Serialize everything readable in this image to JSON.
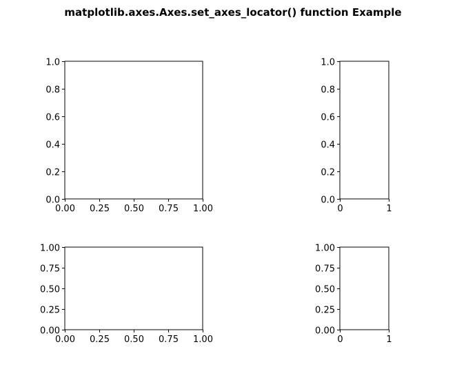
{
  "figure": {
    "title": "matplotlib.axes.Axes.set_axes_locator() function Example"
  },
  "chart_data": [
    {
      "type": "scatter",
      "name": "top-left",
      "xlim": [
        0,
        1
      ],
      "ylim": [
        0,
        1
      ],
      "x_ticks": [
        0.0,
        0.25,
        0.5,
        0.75,
        1.0
      ],
      "x_tick_labels": [
        "0.00",
        "0.25",
        "0.50",
        "0.75",
        "1.00"
      ],
      "y_ticks": [
        0.0,
        0.2,
        0.4,
        0.6,
        0.8,
        1.0
      ],
      "y_tick_labels": [
        "0.0",
        "0.2",
        "0.4",
        "0.6",
        "0.8",
        "1.0"
      ],
      "series": [],
      "grid": false
    },
    {
      "type": "scatter",
      "name": "top-right",
      "xlim": [
        0,
        1
      ],
      "ylim": [
        0,
        1
      ],
      "x_ticks": [
        0,
        1
      ],
      "x_tick_labels": [
        "0",
        "1"
      ],
      "y_ticks": [
        0.0,
        0.2,
        0.4,
        0.6,
        0.8,
        1.0
      ],
      "y_tick_labels": [
        "0.0",
        "0.2",
        "0.4",
        "0.6",
        "0.8",
        "1.0"
      ],
      "series": [],
      "grid": false
    },
    {
      "type": "scatter",
      "name": "bottom-left",
      "xlim": [
        0,
        1
      ],
      "ylim": [
        0,
        1
      ],
      "x_ticks": [
        0.0,
        0.25,
        0.5,
        0.75,
        1.0
      ],
      "x_tick_labels": [
        "0.00",
        "0.25",
        "0.50",
        "0.75",
        "1.00"
      ],
      "y_ticks": [
        0.0,
        0.25,
        0.5,
        0.75,
        1.0
      ],
      "y_tick_labels": [
        "0.00",
        "0.25",
        "0.50",
        "0.75",
        "1.00"
      ],
      "series": [],
      "grid": false
    },
    {
      "type": "scatter",
      "name": "bottom-right",
      "xlim": [
        0,
        1
      ],
      "ylim": [
        0,
        1
      ],
      "x_ticks": [
        0,
        1
      ],
      "x_tick_labels": [
        "0",
        "1"
      ],
      "y_ticks": [
        0.0,
        0.25,
        0.5,
        0.75,
        1.0
      ],
      "y_tick_labels": [
        "0.00",
        "0.25",
        "0.50",
        "0.75",
        "1.00"
      ],
      "series": [],
      "grid": false
    }
  ]
}
